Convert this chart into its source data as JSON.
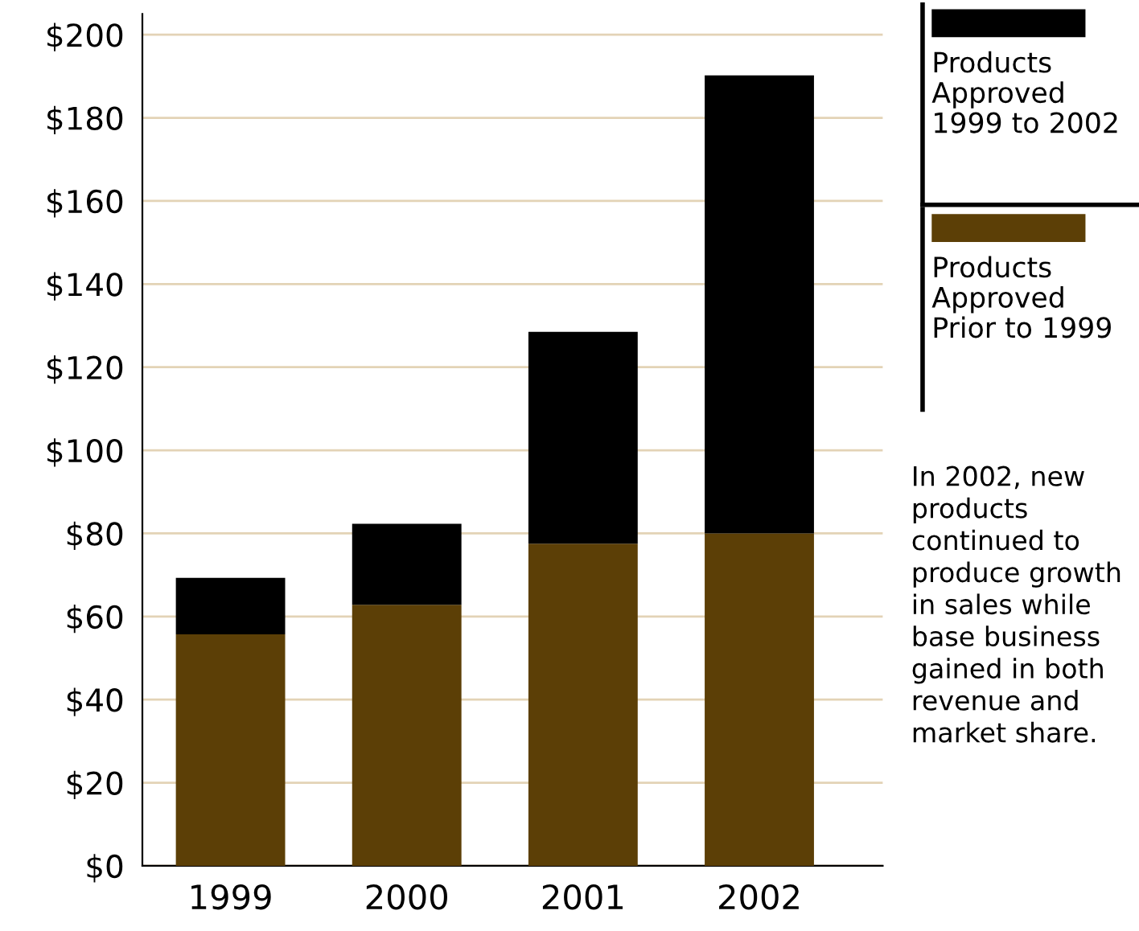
{
  "chart_data": {
    "type": "bar",
    "stacked": true,
    "categories": [
      "1999",
      "2000",
      "2001",
      "2002"
    ],
    "series": [
      {
        "name": "Products Approved Prior to 1999",
        "color": "#5c3f06",
        "values": [
          55.7,
          62.8,
          77.5,
          80
        ]
      },
      {
        "name": "Products Approved 1999 to 2002",
        "color": "#000000",
        "values": [
          13.6,
          19.5,
          51,
          110.2
        ]
      }
    ],
    "ylim": [
      0,
      205
    ],
    "yticks": [
      {
        "value": 0,
        "label": "$0"
      },
      {
        "value": 20,
        "label": "$20"
      },
      {
        "value": 40,
        "label": "$40"
      },
      {
        "value": 60,
        "label": "$60"
      },
      {
        "value": 80,
        "label": "$80"
      },
      {
        "value": 100,
        "label": "$100"
      },
      {
        "value": 120,
        "label": "$120"
      },
      {
        "value": 140,
        "label": "$140"
      },
      {
        "value": 160,
        "label": "$160"
      },
      {
        "value": 180,
        "label": "$180"
      },
      {
        "value": 200,
        "label": "$200"
      }
    ],
    "grid": "y",
    "legend": "top right",
    "annotations": [
      "In 2002, new products continued to produce growth in sales while base business gained in both revenue and market share."
    ]
  }
}
